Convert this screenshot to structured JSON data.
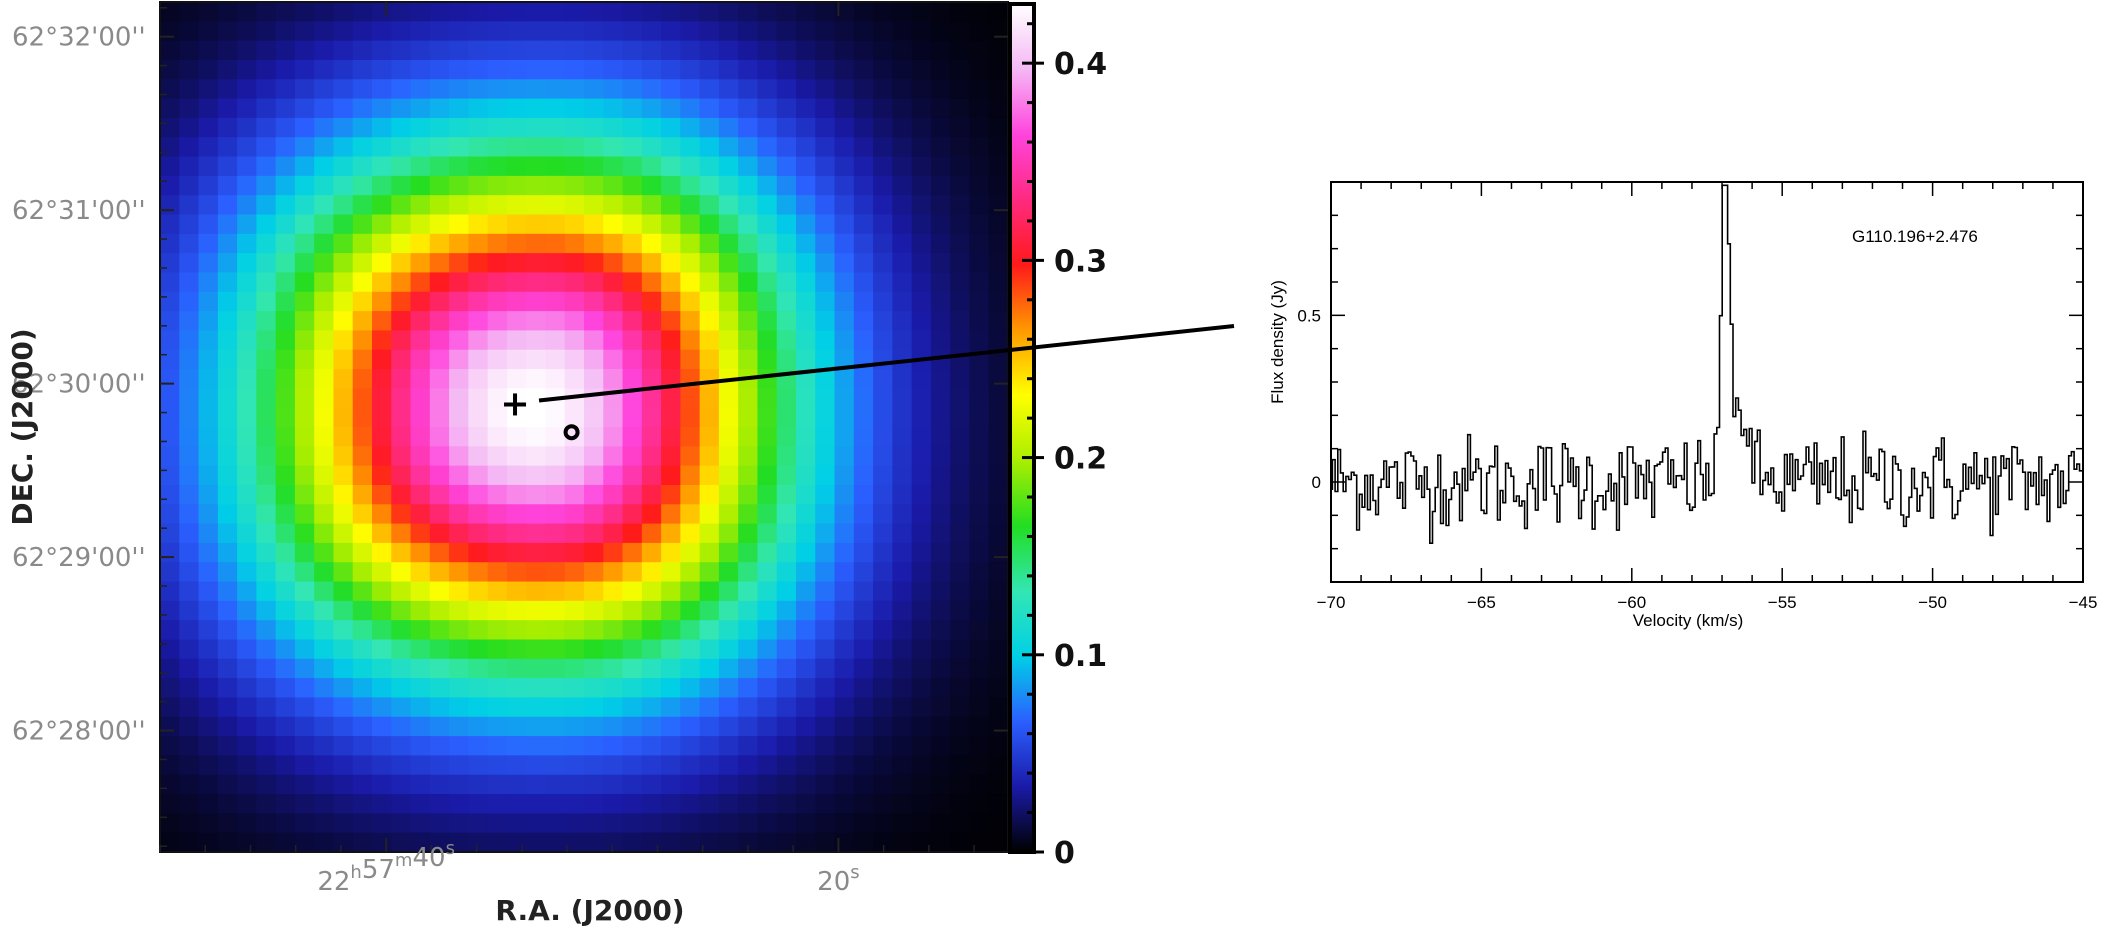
{
  "chart_data": [
    {
      "type": "heatmap",
      "title": "",
      "xlabel": "R.A. (J2000)",
      "ylabel": "DEC. (J2000)",
      "x_ticks": [
        {
          "ra_sec": 40,
          "label_main": "22",
          "sup_h": "h",
          "label_mid": "57",
          "sup_m": "m",
          "label_sec": "40",
          "sup_s": "s"
        },
        {
          "ra_sec": 20,
          "label_main": "",
          "sup_h": "",
          "label_mid": "",
          "sup_m": "",
          "label_sec": "20",
          "sup_s": "s"
        }
      ],
      "y_ticks": [
        {
          "dec_arcmin": 32,
          "label": "62°32'00''"
        },
        {
          "dec_arcmin": 31,
          "label": "62°31'00''"
        },
        {
          "dec_arcmin": 30,
          "label": "62°30'00''"
        },
        {
          "dec_arcmin": 29,
          "label": "62°29'00''"
        },
        {
          "dec_arcmin": 28,
          "label": "62°28'00''"
        }
      ],
      "ra_range_sec": [
        50.0,
        12.5
      ],
      "dec_range_arcmin": [
        27.3,
        32.2
      ],
      "colorbar": {
        "min": 0,
        "max": 0.43,
        "ticks": [
          {
            "value": 0,
            "label": "0"
          },
          {
            "value": 0.1,
            "label": "0.1"
          },
          {
            "value": 0.2,
            "label": "0.2"
          },
          {
            "value": 0.3,
            "label": "0.3"
          },
          {
            "value": 0.4,
            "label": "0.4"
          }
        ],
        "colormap": [
          "#000000",
          "#1a1aa8",
          "#2b5fff",
          "#00cfe6",
          "#33e6b3",
          "#22dd22",
          "#aaee00",
          "#ffff00",
          "#ff9900",
          "#ff1a1a",
          "#ff2a80",
          "#ff44dd",
          "#f4b8f4",
          "#ffffff"
        ]
      },
      "grid": {
        "nx": 44,
        "ny": 44
      },
      "peak": {
        "ra_sec": 34.3,
        "dec_arcmin": 29.85,
        "value": 0.43
      },
      "markers": [
        {
          "kind": "plus",
          "ra_sec": 34.3,
          "dec_arcmin": 29.88
        },
        {
          "kind": "circle",
          "ra_sec": 31.8,
          "dec_arcmin": 29.72
        }
      ]
    },
    {
      "type": "line",
      "title": "G110.196+2.476",
      "xlabel": "Velocity (km/s)",
      "ylabel": "Flux density (Jy)",
      "xlim": [
        -70,
        -45
      ],
      "ylim": [
        -0.3,
        0.9
      ],
      "x_ticks": [
        {
          "value": -70,
          "label": "−70"
        },
        {
          "value": -65,
          "label": "−65"
        },
        {
          "value": -60,
          "label": "−60"
        },
        {
          "value": -55,
          "label": "−55"
        },
        {
          "value": -50,
          "label": "−50"
        },
        {
          "value": -45,
          "label": "−45"
        }
      ],
      "y_ticks": [
        {
          "value": 0,
          "label": "0"
        },
        {
          "value": 0.5,
          "label": "0.5"
        }
      ],
      "line_profile": {
        "peak_velocity": -56.9,
        "peak_flux": 0.87,
        "noise_rms": 0.07,
        "channel_width": 0.09
      }
    }
  ]
}
